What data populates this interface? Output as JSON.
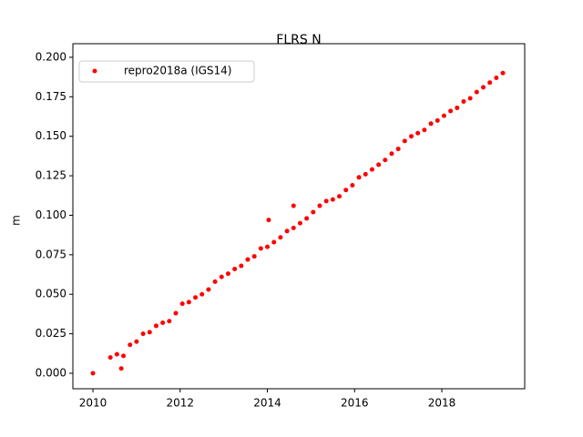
{
  "chart_data": {
    "type": "scatter",
    "title": "FLRS N",
    "y_label": "m",
    "x": [
      2010.0,
      2010.4,
      2010.55,
      2010.65,
      2010.7,
      2010.85,
      2011.0,
      2011.15,
      2011.3,
      2011.45,
      2011.6,
      2011.75,
      2011.9,
      2012.05,
      2012.2,
      2012.35,
      2012.5,
      2012.65,
      2012.8,
      2012.95,
      2013.1,
      2013.25,
      2013.4,
      2013.55,
      2013.7,
      2013.85,
      2014.0,
      2014.03,
      2014.15,
      2014.3,
      2014.45,
      2014.6,
      2014.6,
      2014.75,
      2014.9,
      2015.05,
      2015.2,
      2015.35,
      2015.5,
      2015.65,
      2015.8,
      2015.95,
      2016.1,
      2016.25,
      2016.4,
      2016.55,
      2016.7,
      2016.85,
      2017.0,
      2017.15,
      2017.3,
      2017.45,
      2017.6,
      2017.75,
      2017.9,
      2018.05,
      2018.2,
      2018.35,
      2018.5,
      2018.65,
      2018.8,
      2018.95,
      2019.1,
      2019.25,
      2019.4
    ],
    "series": [
      {
        "name": "repro2018a (IGS14)",
        "color": "#ff0000",
        "values": [
          0.0,
          0.01,
          0.012,
          0.003,
          0.011,
          0.018,
          0.02,
          0.025,
          0.026,
          0.03,
          0.032,
          0.033,
          0.038,
          0.044,
          0.045,
          0.048,
          0.05,
          0.053,
          0.058,
          0.061,
          0.063,
          0.066,
          0.068,
          0.072,
          0.074,
          0.079,
          0.08,
          0.097,
          0.083,
          0.086,
          0.09,
          0.092,
          0.106,
          0.095,
          0.098,
          0.102,
          0.106,
          0.109,
          0.11,
          0.112,
          0.116,
          0.119,
          0.124,
          0.126,
          0.129,
          0.132,
          0.135,
          0.139,
          0.142,
          0.147,
          0.15,
          0.152,
          0.154,
          0.158,
          0.16,
          0.163,
          0.166,
          0.168,
          0.172,
          0.174,
          0.178,
          0.181,
          0.184,
          0.187,
          0.19
        ]
      }
    ],
    "xlim": [
      2009.54,
      2019.9
    ],
    "xticks": [
      2010,
      2012,
      2014,
      2016,
      2018
    ],
    "ylim": [
      -0.0098,
      0.2086
    ],
    "yticks": [
      {
        "value": 0,
        "label": "0.000"
      },
      {
        "value": 0.025,
        "label": "0.025"
      },
      {
        "value": 0.05,
        "label": "0.050"
      },
      {
        "value": 0.075,
        "label": "0.075"
      },
      {
        "value": 0.1,
        "label": "0.100"
      },
      {
        "value": 0.125,
        "label": "0.125"
      },
      {
        "value": 0.15,
        "label": "0.150"
      },
      {
        "value": 0.175,
        "label": "0.175"
      },
      {
        "value": 0.2,
        "label": "0.200"
      }
    ],
    "legend": "upper left"
  }
}
